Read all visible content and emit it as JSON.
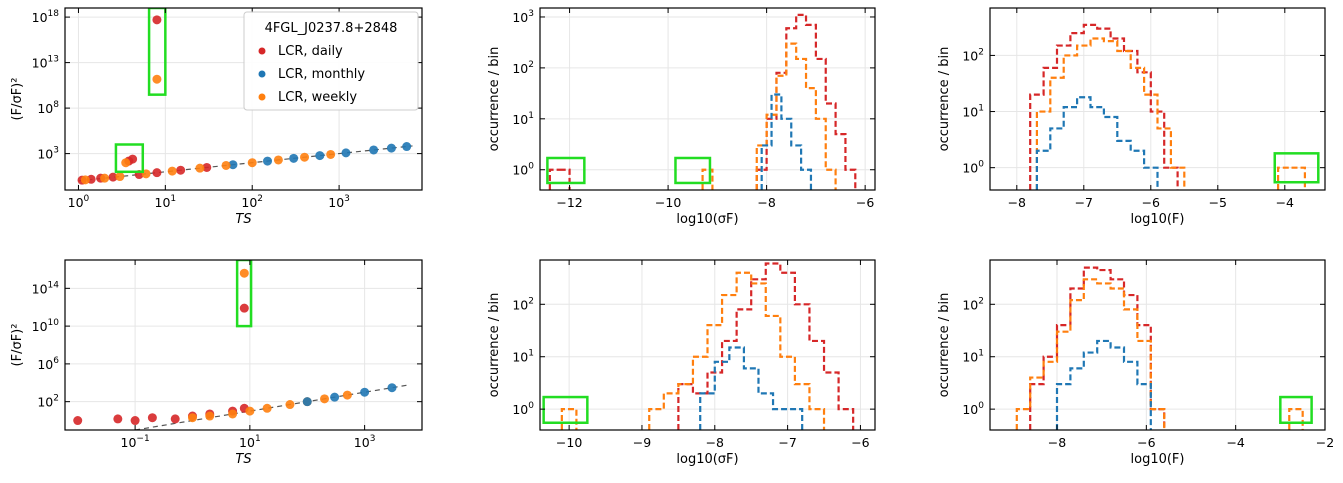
{
  "figure": {
    "legend_title": "4FGL_J0237.8+2848"
  },
  "colors": {
    "daily": "#d62728",
    "monthly": "#1f77b4",
    "weekly": "#ff7f0e",
    "highlight": "#22dd22",
    "grid": "#e6e6e6",
    "trend": "#555555"
  },
  "chart_data": [
    {
      "id": "top-left",
      "type": "scatter",
      "xlabel": "TS",
      "ylabel": "(F/σF)²",
      "xscale": "log",
      "yscale": "log",
      "xlim": [
        0.7,
        9000
      ],
      "ylim": [
        0.1,
        1e+19
      ],
      "xticks": [
        {
          "v": 1,
          "label": "10",
          "exp": "0"
        },
        {
          "v": 10,
          "label": "10",
          "exp": "1"
        },
        {
          "v": 100,
          "label": "10",
          "exp": "2"
        },
        {
          "v": 1000,
          "label": "10",
          "exp": "3"
        }
      ],
      "yticks": [
        {
          "v": 1000,
          "label": "10",
          "exp": "3"
        },
        {
          "v": 100000000.0,
          "label": "10",
          "exp": "8"
        },
        {
          "v": 10000000000000.0,
          "label": "10",
          "exp": "13"
        },
        {
          "v": 1e+18,
          "label": "10",
          "exp": "18"
        }
      ],
      "grid": true,
      "legend": {
        "placement": "top-right",
        "title": "4FGL_J0237.8+2848",
        "entries": [
          "LCR, daily",
          "LCR, monthly",
          "LCR, weekly"
        ]
      },
      "trend": {
        "x": [
          1,
          7000
        ],
        "y": [
          1,
          7000
        ]
      },
      "series": [
        {
          "name": "LCR, daily",
          "key": "daily",
          "points": [
            [
              1.1,
              1.2
            ],
            [
              1.4,
              1.5
            ],
            [
              1.8,
              2
            ],
            [
              2.5,
              2.6
            ],
            [
              3.8,
              150
            ],
            [
              4.2,
              250
            ],
            [
              5,
              5
            ],
            [
              8,
              8
            ],
            [
              15,
              15
            ],
            [
              30,
              30
            ],
            [
              8,
              5e+17
            ]
          ]
        },
        {
          "name": "LCR, monthly",
          "key": "monthly",
          "points": [
            [
              60,
              60
            ],
            [
              150,
              150
            ],
            [
              300,
              300
            ],
            [
              600,
              600
            ],
            [
              1200,
              1200
            ],
            [
              2500,
              2500
            ],
            [
              4000,
              4000
            ],
            [
              6000,
              6000
            ]
          ]
        },
        {
          "name": "LCR, weekly",
          "key": "weekly",
          "points": [
            [
              1.2,
              1.3
            ],
            [
              2,
              2
            ],
            [
              3,
              3
            ],
            [
              3.5,
              100
            ],
            [
              6,
              6
            ],
            [
              12,
              12
            ],
            [
              25,
              25
            ],
            [
              50,
              50
            ],
            [
              100,
              100
            ],
            [
              200,
              200
            ],
            [
              400,
              400
            ],
            [
              800,
              800
            ],
            [
              8,
              150000000000.0
            ]
          ]
        }
      ],
      "highlights": [
        {
          "x": [
            6.5,
            10
          ],
          "y": [
            3000000000.0,
            1e+19
          ]
        },
        {
          "x": [
            2.7,
            5.5
          ],
          "y": [
            10,
            10000.0
          ]
        }
      ]
    },
    {
      "id": "top-middle",
      "type": "histogram",
      "xlabel": "log10(σF)",
      "ylabel": "occurrence / bin",
      "yscale": "log",
      "xlim": [
        -12.6,
        -5.8
      ],
      "ylim": [
        0.4,
        1500
      ],
      "xticks": [
        {
          "v": -12,
          "label": "−12"
        },
        {
          "v": -10,
          "label": "−10"
        },
        {
          "v": -8,
          "label": "−8"
        },
        {
          "v": -6,
          "label": "−6"
        }
      ],
      "yticks": [
        {
          "v": 1,
          "label": "10",
          "exp": "0"
        },
        {
          "v": 10,
          "label": "10",
          "exp": "1"
        },
        {
          "v": 100,
          "label": "10",
          "exp": "2"
        },
        {
          "v": 1000,
          "label": "10",
          "exp": "3"
        }
      ],
      "grid": true,
      "series": [
        {
          "key": "daily",
          "dash": true,
          "edges": [
            -8.2,
            -8.0,
            -7.8,
            -7.6,
            -7.4,
            -7.2,
            -7.0,
            -6.8,
            -6.6,
            -6.4,
            -6.2
          ],
          "counts": [
            1,
            10,
            80,
            600,
            1100,
            700,
            150,
            20,
            5,
            1
          ]
        },
        {
          "key": "daily_small",
          "color": "daily",
          "dash": true,
          "edges": [
            -12.4,
            -12.2,
            -12.0
          ],
          "counts": [
            1,
            1
          ]
        },
        {
          "key": "weekly",
          "dash": true,
          "edges": [
            -8.2,
            -8.0,
            -7.8,
            -7.6,
            -7.4,
            -7.2,
            -7.0,
            -6.8,
            -6.6
          ],
          "counts": [
            3,
            12,
            70,
            300,
            150,
            40,
            10,
            1
          ]
        },
        {
          "key": "weekly_small",
          "color": "weekly",
          "dash": true,
          "edges": [
            -9.3,
            -9.1
          ],
          "counts": [
            1
          ]
        },
        {
          "key": "monthly",
          "dash": true,
          "edges": [
            -8.1,
            -7.9,
            -7.7,
            -7.5,
            -7.3,
            -7.1
          ],
          "counts": [
            3,
            30,
            10,
            3,
            1
          ]
        }
      ],
      "highlights": [
        {
          "x": [
            -12.45,
            -11.7
          ],
          "y": [
            0.55,
            1.7
          ]
        },
        {
          "x": [
            -9.85,
            -9.15
          ],
          "y": [
            0.55,
            1.7
          ]
        }
      ]
    },
    {
      "id": "top-right",
      "type": "histogram",
      "xlabel": "log10(F)",
      "ylabel": "occurrence / bin",
      "yscale": "log",
      "xlim": [
        -8.4,
        -3.4
      ],
      "ylim": [
        0.4,
        700
      ],
      "xticks": [
        {
          "v": -8,
          "label": "−8"
        },
        {
          "v": -7,
          "label": "−7"
        },
        {
          "v": -6,
          "label": "−6"
        },
        {
          "v": -5,
          "label": "−5"
        },
        {
          "v": -4,
          "label": "−4"
        }
      ],
      "yticks": [
        {
          "v": 1,
          "label": "10",
          "exp": "0"
        },
        {
          "v": 10,
          "label": "10",
          "exp": "1"
        },
        {
          "v": 100,
          "label": "10",
          "exp": "2"
        }
      ],
      "grid": true,
      "series": [
        {
          "key": "daily",
          "dash": true,
          "edges": [
            -7.8,
            -7.6,
            -7.4,
            -7.2,
            -7.0,
            -6.8,
            -6.6,
            -6.4,
            -6.2,
            -6.0,
            -5.8,
            -5.6
          ],
          "counts": [
            20,
            60,
            150,
            250,
            350,
            300,
            200,
            120,
            50,
            10,
            1
          ]
        },
        {
          "key": "weekly",
          "dash": true,
          "edges": [
            -7.7,
            -7.5,
            -7.3,
            -7.1,
            -6.9,
            -6.7,
            -6.5,
            -6.3,
            -6.1,
            -5.9,
            -5.7,
            -5.5
          ],
          "counts": [
            10,
            40,
            100,
            150,
            200,
            180,
            120,
            60,
            20,
            5,
            1
          ]
        },
        {
          "key": "weekly_small",
          "color": "weekly",
          "dash": true,
          "edges": [
            -4.1,
            -3.9,
            -3.7
          ],
          "counts": [
            1,
            1
          ]
        },
        {
          "key": "monthly",
          "dash": true,
          "edges": [
            -7.7,
            -7.5,
            -7.3,
            -7.1,
            -6.9,
            -6.7,
            -6.5,
            -6.3,
            -6.1,
            -5.9
          ],
          "counts": [
            2,
            5,
            12,
            18,
            12,
            8,
            3,
            2,
            1
          ]
        }
      ],
      "highlights": [
        {
          "x": [
            -4.15,
            -3.5
          ],
          "y": [
            0.55,
            1.8
          ]
        }
      ]
    },
    {
      "id": "bottom-left",
      "type": "scatter",
      "xlabel": "TS",
      "ylabel": "(F/σF)²",
      "xscale": "log",
      "yscale": "log",
      "xlim": [
        0.006,
        10000
      ],
      "ylim": [
        0.1,
        1e+17
      ],
      "xticks": [
        {
          "v": 0.1,
          "label": "10",
          "exp": "−1"
        },
        {
          "v": 10,
          "label": "10",
          "exp": "1"
        },
        {
          "v": 1000,
          "label": "10",
          "exp": "3"
        }
      ],
      "yticks": [
        {
          "v": 100,
          "label": "10",
          "exp": "2"
        },
        {
          "v": 1000000.0,
          "label": "10",
          "exp": "6"
        },
        {
          "v": 10000000000.0,
          "label": "10",
          "exp": "10"
        },
        {
          "v": 100000000000000.0,
          "label": "10",
          "exp": "14"
        }
      ],
      "grid": true,
      "trend": {
        "x": [
          0.1,
          6000
        ],
        "y": [
          0.1,
          6000
        ]
      },
      "series": [
        {
          "key": "daily",
          "points": [
            [
              0.01,
              1
            ],
            [
              0.05,
              1.5
            ],
            [
              0.1,
              1
            ],
            [
              0.2,
              2
            ],
            [
              0.5,
              1.5
            ],
            [
              1,
              3
            ],
            [
              2,
              5
            ],
            [
              5,
              10
            ],
            [
              8,
              20
            ],
            [
              8,
              800000000000.0
            ]
          ]
        },
        {
          "key": "weekly",
          "points": [
            [
              1,
              2
            ],
            [
              2,
              3
            ],
            [
              5,
              5
            ],
            [
              10,
              10
            ],
            [
              20,
              20
            ],
            [
              50,
              50
            ],
            [
              100,
              100
            ],
            [
              200,
              200
            ],
            [
              500,
              500
            ],
            [
              8,
              4000000000000000.0
            ]
          ]
        },
        {
          "key": "monthly",
          "points": [
            [
              100,
              100
            ],
            [
              300,
              300
            ],
            [
              1000,
              1000
            ],
            [
              3000,
              3000
            ]
          ]
        }
      ],
      "highlights": [
        {
          "x": [
            6,
            10.5
          ],
          "y": [
            10000000000.0,
            1e+17
          ]
        }
      ]
    },
    {
      "id": "bottom-middle",
      "type": "histogram",
      "xlabel": "log10(σF)",
      "ylabel": "occurrence / bin",
      "yscale": "log",
      "xlim": [
        -10.4,
        -5.8
      ],
      "ylim": [
        0.4,
        700
      ],
      "xticks": [
        {
          "v": -10,
          "label": "−10"
        },
        {
          "v": -9,
          "label": "−9"
        },
        {
          "v": -8,
          "label": "−8"
        },
        {
          "v": -7,
          "label": "−7"
        },
        {
          "v": -6,
          "label": "−6"
        }
      ],
      "yticks": [
        {
          "v": 1,
          "label": "10",
          "exp": "0"
        },
        {
          "v": 10,
          "label": "10",
          "exp": "1"
        },
        {
          "v": 100,
          "label": "10",
          "exp": "2"
        }
      ],
      "grid": true,
      "series": [
        {
          "key": "daily",
          "dash": true,
          "edges": [
            -8.5,
            -8.3,
            -8.1,
            -7.9,
            -7.7,
            -7.5,
            -7.3,
            -7.1,
            -6.9,
            -6.7,
            -6.5,
            -6.3,
            -6.1
          ],
          "counts": [
            3,
            2,
            5,
            20,
            80,
            300,
            600,
            400,
            100,
            20,
            5,
            1
          ]
        },
        {
          "key": "weekly",
          "dash": true,
          "edges": [
            -8.9,
            -8.7,
            -8.5,
            -8.3,
            -8.1,
            -7.9,
            -7.7,
            -7.5,
            -7.3,
            -7.1,
            -6.9,
            -6.7,
            -6.5
          ],
          "counts": [
            1,
            2,
            3,
            10,
            40,
            150,
            400,
            250,
            60,
            10,
            3,
            1
          ]
        },
        {
          "key": "weekly_small",
          "color": "weekly",
          "dash": true,
          "edges": [
            -10.1,
            -9.9
          ],
          "counts": [
            1
          ]
        },
        {
          "key": "monthly",
          "dash": true,
          "edges": [
            -8.2,
            -8.0,
            -7.8,
            -7.6,
            -7.4,
            -7.2,
            -7.0,
            -6.8
          ],
          "counts": [
            2,
            8,
            15,
            6,
            2,
            1,
            1
          ]
        }
      ],
      "highlights": [
        {
          "x": [
            -10.35,
            -9.75
          ],
          "y": [
            0.55,
            1.7
          ]
        }
      ]
    },
    {
      "id": "bottom-right",
      "type": "histogram",
      "xlabel": "log10(F)",
      "ylabel": "occurrence / bin",
      "yscale": "log",
      "xlim": [
        -9.5,
        -2.0
      ],
      "ylim": [
        0.4,
        700
      ],
      "xticks": [
        {
          "v": -8,
          "label": "−8"
        },
        {
          "v": -6,
          "label": "−6"
        },
        {
          "v": -4,
          "label": "−4"
        },
        {
          "v": -2,
          "label": "−2"
        }
      ],
      "yticks": [
        {
          "v": 1,
          "label": "10",
          "exp": "0"
        },
        {
          "v": 10,
          "label": "10",
          "exp": "1"
        },
        {
          "v": 100,
          "label": "10",
          "exp": "2"
        }
      ],
      "grid": true,
      "series": [
        {
          "key": "daily",
          "dash": true,
          "edges": [
            -8.6,
            -8.3,
            -8.0,
            -7.7,
            -7.4,
            -7.1,
            -6.8,
            -6.5,
            -6.2,
            -5.9,
            -5.6
          ],
          "counts": [
            3,
            10,
            40,
            200,
            500,
            450,
            300,
            150,
            40,
            1
          ]
        },
        {
          "key": "weekly",
          "dash": true,
          "edges": [
            -8.9,
            -8.6,
            -8.3,
            -8.0,
            -7.7,
            -7.4,
            -7.1,
            -6.8,
            -6.5,
            -6.2,
            -5.9,
            -5.6
          ],
          "counts": [
            1,
            4,
            8,
            30,
            120,
            300,
            250,
            200,
            80,
            20,
            1
          ]
        },
        {
          "key": "weekly_small",
          "color": "weekly",
          "dash": true,
          "edges": [
            -2.8,
            -2.5
          ],
          "counts": [
            1
          ]
        },
        {
          "key": "monthly",
          "dash": true,
          "edges": [
            -8.0,
            -7.7,
            -7.4,
            -7.1,
            -6.8,
            -6.5,
            -6.2,
            -5.9
          ],
          "counts": [
            3,
            6,
            12,
            20,
            15,
            8,
            3
          ]
        }
      ],
      "highlights": [
        {
          "x": [
            -3.0,
            -2.3
          ],
          "y": [
            0.55,
            1.7
          ]
        }
      ]
    }
  ]
}
